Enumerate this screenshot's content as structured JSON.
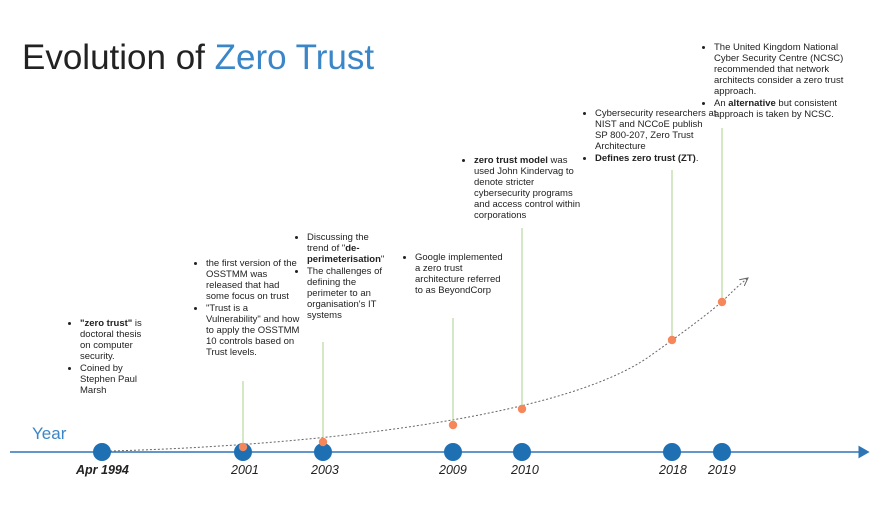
{
  "title_prefix": "Evolution of ",
  "title_accent": "Zero Trust",
  "axis_label": "Year",
  "colors": {
    "accent": "#3a86c8",
    "node": "#1f6fb3",
    "orange": "#f5875a",
    "leader": "#a8d08d",
    "axis": "#2e75b6"
  },
  "events": [
    {
      "year": "Apr 1994",
      "bullets": [
        [
          {
            "t": "\"zero trust\"",
            "b": true
          },
          {
            "t": " is doctoral thesis on computer security."
          }
        ],
        [
          {
            "t": "Coined by Stephen Paul Marsh"
          }
        ]
      ]
    },
    {
      "year": "2001",
      "bullets": [
        [
          {
            "t": "the first version of the OSSTMM was released that had some focus on trust"
          }
        ],
        [
          {
            "t": "\"Trust is a Vulnerability\" and how to apply the OSSTMM 10 controls based on Trust levels."
          }
        ]
      ]
    },
    {
      "year": "2003",
      "bullets": [
        [
          {
            "t": "Discussing the trend of \""
          },
          {
            "t": "de-perimeterisation",
            "b": true
          },
          {
            "t": "\""
          }
        ],
        [
          {
            "t": "The challenges of defining the perimeter to an organisation's IT systems"
          }
        ]
      ]
    },
    {
      "year": "2009",
      "bullets": [
        [
          {
            "t": "Google implemented a zero trust architecture referred to as BeyondCorp"
          }
        ]
      ]
    },
    {
      "year": "2010",
      "bullets": [
        [
          {
            "t": "zero trust model",
            "b": true
          },
          {
            "t": " was used John Kindervag to denote stricter cybersecurity programs and access control within corporations"
          }
        ]
      ]
    },
    {
      "year": "2018",
      "bullets": [
        [
          {
            "t": "Cybersecurity researchers at NIST and NCCoE publish SP 800-207, Zero Trust Architecture"
          }
        ],
        [
          {
            "t": "Defines zero trust (ZT)",
            "b": true
          },
          {
            "t": "."
          }
        ]
      ]
    },
    {
      "year": "2019",
      "bullets": [
        [
          {
            "t": "The United Kingdom National Cyber Security Centre (NCSC) recommended that network architects consider a zero trust approach."
          }
        ],
        [
          {
            "t": "An "
          },
          {
            "t": "alternative",
            "b": true
          },
          {
            "t": " but consistent approach is taken by NCSC."
          }
        ]
      ]
    }
  ]
}
